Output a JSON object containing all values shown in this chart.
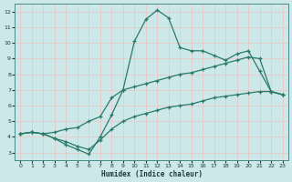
{
  "xlabel": "Humidex (Indice chaleur)",
  "ylabel": "",
  "bg_color": "#cce8e8",
  "grid_color": "#e8c8c8",
  "line_color": "#2a7a6a",
  "xlim": [
    -0.5,
    23.5
  ],
  "ylim": [
    2.5,
    12.5
  ],
  "xticks": [
    0,
    1,
    2,
    3,
    4,
    5,
    6,
    7,
    8,
    9,
    10,
    11,
    12,
    13,
    14,
    15,
    16,
    17,
    18,
    19,
    20,
    21,
    22,
    23
  ],
  "yticks": [
    3,
    4,
    5,
    6,
    7,
    8,
    9,
    10,
    11,
    12
  ],
  "line1_x": [
    0,
    1,
    2,
    3,
    4,
    5,
    6,
    7,
    8,
    9,
    10,
    11,
    12,
    13,
    14,
    15,
    16,
    17,
    18,
    19,
    20,
    21,
    22,
    23
  ],
  "line1_y": [
    4.2,
    4.3,
    4.2,
    3.9,
    3.5,
    3.2,
    2.9,
    4.0,
    5.4,
    7.0,
    10.1,
    11.5,
    12.1,
    11.6,
    9.7,
    9.5,
    9.5,
    9.2,
    8.9,
    9.3,
    9.5,
    8.2,
    6.9,
    6.7
  ],
  "line2_x": [
    0,
    1,
    2,
    3,
    4,
    5,
    6,
    7,
    8,
    9,
    10,
    11,
    12,
    13,
    14,
    15,
    16,
    17,
    18,
    19,
    20,
    21,
    22,
    23
  ],
  "line2_y": [
    4.2,
    4.3,
    4.2,
    4.3,
    4.5,
    4.6,
    5.0,
    5.3,
    6.5,
    7.0,
    7.2,
    7.4,
    7.6,
    7.8,
    8.0,
    8.1,
    8.3,
    8.5,
    8.7,
    8.9,
    9.1,
    9.0,
    6.9,
    6.7
  ],
  "line3_x": [
    0,
    1,
    2,
    3,
    4,
    5,
    6,
    7,
    8,
    9,
    10,
    11,
    12,
    13,
    14,
    15,
    16,
    17,
    18,
    19,
    20,
    21,
    22,
    23
  ],
  "line3_y": [
    4.2,
    4.3,
    4.2,
    3.9,
    3.7,
    3.4,
    3.2,
    3.8,
    4.5,
    5.0,
    5.3,
    5.5,
    5.7,
    5.9,
    6.0,
    6.1,
    6.3,
    6.5,
    6.6,
    6.7,
    6.8,
    6.9,
    6.9,
    6.7
  ]
}
